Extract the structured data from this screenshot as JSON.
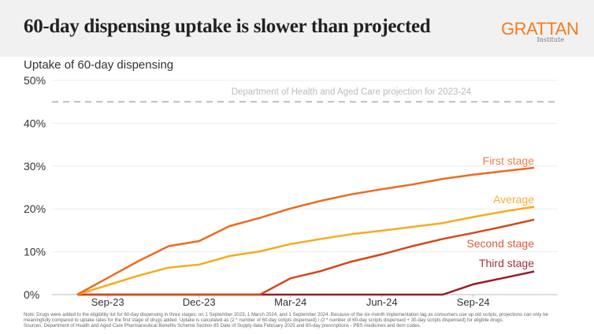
{
  "header": {
    "title": "60-day dispensing uptake is slower than projected",
    "logo_main": "GRATTAN",
    "logo_sub": "Institute"
  },
  "chart_data": {
    "type": "line",
    "title": "60-day dispensing uptake is slower than projected",
    "ylabel": "Uptake of 60-day dispensing",
    "ylim": [
      0,
      50
    ],
    "y_ticks": [
      "0%",
      "10%",
      "20%",
      "30%",
      "40%",
      "50%"
    ],
    "y_tick_values": [
      0,
      10,
      20,
      30,
      40,
      50
    ],
    "x": [
      "Aug-23",
      "Sep-23",
      "Oct-23",
      "Nov-23",
      "Dec-23",
      "Jan-24",
      "Feb-24",
      "Mar-24",
      "Apr-24",
      "May-24",
      "Jun-24",
      "Jul-24",
      "Aug-24",
      "Sep-24",
      "Oct-24",
      "Nov-24"
    ],
    "x_ticks": [
      "Sep-23",
      "Dec-23",
      "Mar-24",
      "Jun-24",
      "Sep-24"
    ],
    "grid": true,
    "reference_line": {
      "value": 45,
      "label": "Department of Health and Aged Care projection for 2023-24",
      "color": "#bdbdbd"
    },
    "series": [
      {
        "name": "First stage",
        "color": "#ec6a1f",
        "label_color": "#ee7d45",
        "values": [
          0,
          3.9,
          7.8,
          11.3,
          12.5,
          16,
          17.9,
          20.1,
          21.9,
          23.4,
          24.6,
          25.7,
          27,
          28,
          28.8,
          29.6
        ]
      },
      {
        "name": "Average",
        "color": "#f7ab1e",
        "label_color": "#f5ad3a",
        "values": [
          0,
          2.2,
          4.4,
          6.3,
          7,
          9,
          10.1,
          11.8,
          13,
          14.1,
          14.9,
          15.8,
          16.7,
          18.1,
          19.4,
          20.5
        ]
      },
      {
        "name": "Second stage",
        "color": "#d5461a",
        "label_color": "#dc5a3a",
        "values": [
          0,
          0,
          0,
          0,
          0,
          0,
          0,
          3.8,
          5.5,
          7.7,
          9.4,
          11.3,
          13,
          14.4,
          15.9,
          17.5
        ]
      },
      {
        "name": "Third stage",
        "color": "#991b26",
        "label_color": "#a3333a",
        "values": [
          0,
          0,
          0,
          0,
          0,
          0,
          0,
          0,
          0,
          0,
          0,
          0,
          0,
          2.4,
          3.9,
          5.4
        ]
      }
    ]
  },
  "note": "Note: Drugs were added to the eligibility list for 60-day dispensing in three stages: on 1 September 2023, 1 March 2024, and 1 September 2024. Because of the six-month implementation lag as consumers use up old scripts, projections can only be meaningfully compared to uptake rates for the first stage of drugs added.  Uptake is calculated as (2 * number of 60-day scripts dispensed) / (2 * number of 60-day scripts dispensed + 30-day scripts dispensed) for eligible drugs.",
  "sources": "Sources: Department of Health and Aged Care Pharmaceutical Benefits Scheme Section 85 Date of Supply data February 2025 and 60-day prescriptions - PBS medicines and item codes."
}
